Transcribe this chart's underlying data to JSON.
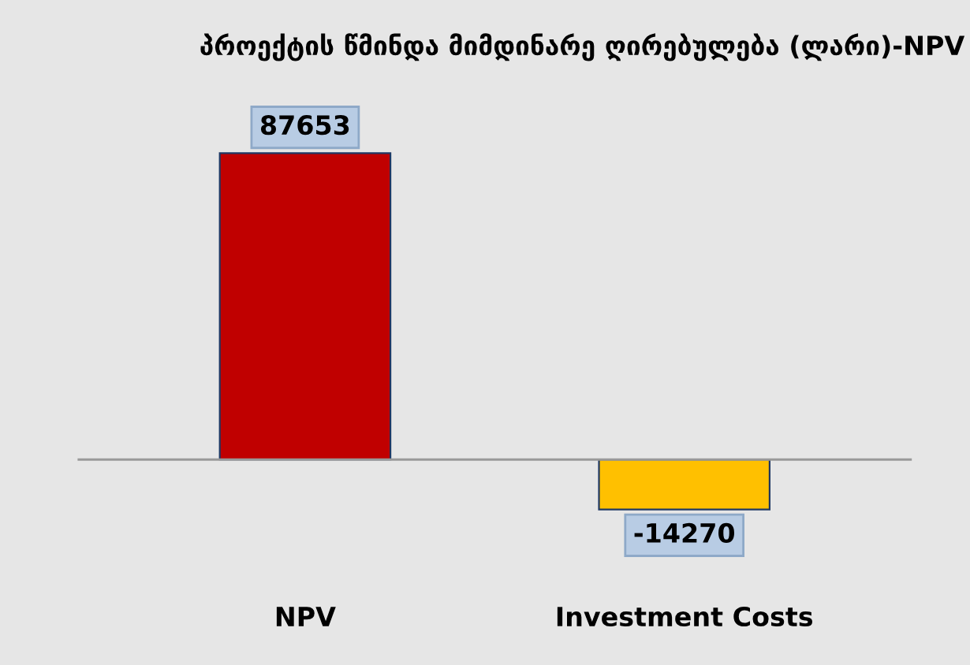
{
  "chart_data": {
    "type": "bar",
    "title": "პროექტის წმინდა მიმდინარე ღირებულება (ლარი)-NPV",
    "categories": [
      "NPV",
      "Investment Costs"
    ],
    "values": [
      87653,
      -14270
    ],
    "colors": [
      "#c00000",
      "#ffc000"
    ],
    "data_labels": true,
    "grid": false,
    "legend": false
  }
}
